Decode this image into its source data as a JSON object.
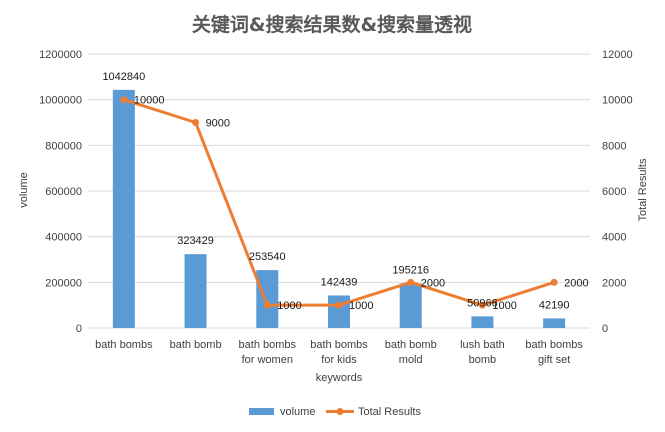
{
  "chart_data": {
    "type": "bar",
    "title": "关键词&搜索结果数&搜索量透视",
    "xlabel": "keywords",
    "ylabel": "volume",
    "y2label": "Total Results",
    "categories": [
      [
        "bath bombs"
      ],
      [
        "bath bomb"
      ],
      [
        "bath bombs",
        "for women"
      ],
      [
        "bath bombs",
        "for kids"
      ],
      [
        "bath bomb",
        "mold"
      ],
      [
        "lush bath",
        "bomb"
      ],
      [
        "bath bombs",
        "gift set"
      ]
    ],
    "ylim": [
      0,
      1200000
    ],
    "y2lim": [
      0,
      12000
    ],
    "yticks": [
      "0",
      "200000",
      "400000",
      "600000",
      "800000",
      "1000000",
      "1200000"
    ],
    "y2ticks": [
      "0",
      "2000",
      "4000",
      "6000",
      "8000",
      "10000",
      "12000"
    ],
    "grid": true,
    "legend_position": "bottom",
    "series": [
      {
        "name": "volume",
        "type": "bar",
        "axis": "left",
        "color": "#5b9bd5",
        "values": [
          1042840,
          323429,
          253540,
          142439,
          195216,
          50966,
          42190
        ],
        "labels": [
          "1042840",
          "323429",
          "253540",
          "142439",
          "195216",
          "50966",
          "42190"
        ]
      },
      {
        "name": "Total Results",
        "type": "line",
        "axis": "right",
        "color": "#ed7d31",
        "values": [
          10000,
          9000,
          1000,
          1000,
          2000,
          1000,
          2000
        ],
        "labels": [
          "10000",
          "9000",
          "1000",
          "1000",
          "2000",
          "1000",
          "2000"
        ]
      }
    ]
  }
}
